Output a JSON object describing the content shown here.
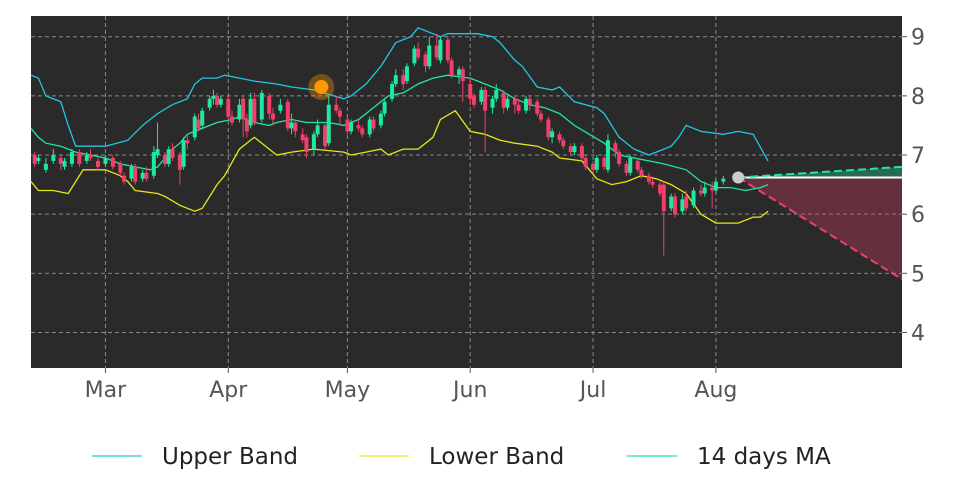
{
  "chart_data": {
    "type": "candlestick",
    "y_ticks": [
      4,
      5,
      6,
      7,
      8,
      9
    ],
    "ylim": [
      3.4,
      9.35
    ],
    "x_ticks": [
      "Mar",
      "Apr",
      "May",
      "Jun",
      "Jul",
      "Aug"
    ],
    "grid": true,
    "legend_placement": "bottom",
    "legend": [
      {
        "key": "upper",
        "label": "Upper Band",
        "color": "#22c7e3"
      },
      {
        "key": "lower",
        "label": "Lower Band",
        "color": "#e6e619"
      },
      {
        "key": "ma",
        "label": "14 days MA",
        "color": "#1de9a0"
      }
    ],
    "colors": {
      "background": "#2a2a2a",
      "up": "#1de9a0",
      "down": "#f0406a",
      "highlight": "#ff9800",
      "forecast_up": "#1de9a0",
      "forecast_down": "#f0406a",
      "last_point": "#cccccc"
    },
    "bands": {
      "upper": [
        [
          0,
          8.35
        ],
        [
          2,
          8.3
        ],
        [
          4,
          8.0
        ],
        [
          8,
          7.9
        ],
        [
          10,
          7.5
        ],
        [
          12,
          7.15
        ],
        [
          20,
          7.15
        ],
        [
          26,
          7.25
        ],
        [
          30,
          7.5
        ],
        [
          34,
          7.7
        ],
        [
          38,
          7.85
        ],
        [
          42,
          7.95
        ],
        [
          44,
          8.2
        ],
        [
          46,
          8.3
        ],
        [
          50,
          8.3
        ],
        [
          52,
          8.35
        ],
        [
          56,
          8.3
        ],
        [
          60,
          8.25
        ],
        [
          66,
          8.2
        ],
        [
          70,
          8.15
        ],
        [
          76,
          8.1
        ],
        [
          84,
          7.95
        ],
        [
          86,
          8.0
        ],
        [
          90,
          8.2
        ],
        [
          94,
          8.5
        ],
        [
          98,
          8.9
        ],
        [
          102,
          9.0
        ],
        [
          104,
          9.15
        ],
        [
          110,
          9.0
        ],
        [
          112,
          9.05
        ],
        [
          120,
          9.05
        ],
        [
          124,
          9.0
        ],
        [
          126,
          8.9
        ],
        [
          128,
          8.75
        ],
        [
          130,
          8.6
        ],
        [
          132,
          8.5
        ],
        [
          136,
          8.15
        ],
        [
          140,
          8.1
        ],
        [
          142,
          8.15
        ],
        [
          146,
          7.9
        ],
        [
          152,
          7.8
        ],
        [
          154,
          7.7
        ],
        [
          158,
          7.3
        ],
        [
          162,
          7.1
        ],
        [
          166,
          7.0
        ],
        [
          168,
          7.05
        ],
        [
          172,
          7.15
        ],
        [
          174,
          7.3
        ],
        [
          176,
          7.5
        ],
        [
          180,
          7.4
        ],
        [
          186,
          7.35
        ],
        [
          190,
          7.4
        ],
        [
          194,
          7.35
        ],
        [
          198,
          6.9
        ]
      ],
      "lower": [
        [
          0,
          6.55
        ],
        [
          2,
          6.4
        ],
        [
          6,
          6.4
        ],
        [
          10,
          6.35
        ],
        [
          12,
          6.55
        ],
        [
          14,
          6.75
        ],
        [
          20,
          6.75
        ],
        [
          24,
          6.65
        ],
        [
          26,
          6.55
        ],
        [
          28,
          6.4
        ],
        [
          34,
          6.35
        ],
        [
          36,
          6.3
        ],
        [
          40,
          6.15
        ],
        [
          44,
          6.05
        ],
        [
          46,
          6.1
        ],
        [
          50,
          6.5
        ],
        [
          52,
          6.65
        ],
        [
          56,
          7.1
        ],
        [
          60,
          7.3
        ],
        [
          62,
          7.2
        ],
        [
          66,
          7.0
        ],
        [
          70,
          7.05
        ],
        [
          76,
          7.1
        ],
        [
          84,
          7.05
        ],
        [
          86,
          7.0
        ],
        [
          90,
          7.05
        ],
        [
          94,
          7.1
        ],
        [
          96,
          7.0
        ],
        [
          100,
          7.1
        ],
        [
          104,
          7.1
        ],
        [
          108,
          7.3
        ],
        [
          110,
          7.6
        ],
        [
          114,
          7.75
        ],
        [
          118,
          7.4
        ],
        [
          122,
          7.35
        ],
        [
          126,
          7.25
        ],
        [
          130,
          7.2
        ],
        [
          136,
          7.15
        ],
        [
          140,
          7.05
        ],
        [
          142,
          6.95
        ],
        [
          148,
          6.9
        ],
        [
          152,
          6.6
        ],
        [
          156,
          6.5
        ],
        [
          160,
          6.55
        ],
        [
          164,
          6.65
        ],
        [
          168,
          6.6
        ],
        [
          172,
          6.5
        ],
        [
          176,
          6.35
        ],
        [
          180,
          6.0
        ],
        [
          184,
          5.85
        ],
        [
          190,
          5.85
        ],
        [
          194,
          5.95
        ],
        [
          196,
          5.95
        ],
        [
          198,
          6.05
        ]
      ],
      "ma": [
        [
          0,
          7.45
        ],
        [
          2,
          7.3
        ],
        [
          4,
          7.2
        ],
        [
          8,
          7.15
        ],
        [
          12,
          7.05
        ],
        [
          16,
          7.0
        ],
        [
          20,
          6.95
        ],
        [
          24,
          6.85
        ],
        [
          28,
          6.8
        ],
        [
          32,
          6.75
        ],
        [
          34,
          6.8
        ],
        [
          36,
          6.95
        ],
        [
          38,
          7.1
        ],
        [
          40,
          7.2
        ],
        [
          42,
          7.35
        ],
        [
          46,
          7.45
        ],
        [
          50,
          7.55
        ],
        [
          54,
          7.6
        ],
        [
          56,
          7.65
        ],
        [
          60,
          7.55
        ],
        [
          64,
          7.5
        ],
        [
          66,
          7.55
        ],
        [
          70,
          7.6
        ],
        [
          74,
          7.55
        ],
        [
          80,
          7.55
        ],
        [
          84,
          7.5
        ],
        [
          88,
          7.6
        ],
        [
          92,
          7.8
        ],
        [
          96,
          8.0
        ],
        [
          100,
          8.05
        ],
        [
          104,
          8.2
        ],
        [
          108,
          8.3
        ],
        [
          112,
          8.35
        ],
        [
          118,
          8.3
        ],
        [
          122,
          8.2
        ],
        [
          126,
          8.1
        ],
        [
          130,
          7.95
        ],
        [
          134,
          7.85
        ],
        [
          138,
          7.8
        ],
        [
          142,
          7.7
        ],
        [
          146,
          7.5
        ],
        [
          150,
          7.35
        ],
        [
          154,
          7.2
        ],
        [
          158,
          7.0
        ],
        [
          162,
          6.95
        ],
        [
          166,
          6.9
        ],
        [
          170,
          6.85
        ],
        [
          176,
          6.75
        ],
        [
          180,
          6.55
        ],
        [
          184,
          6.45
        ],
        [
          188,
          6.45
        ],
        [
          192,
          6.4
        ],
        [
          196,
          6.45
        ],
        [
          198,
          6.5
        ]
      ]
    },
    "candles": [
      [
        1,
        7.0,
        6.85,
        7.05,
        6.8
      ],
      [
        2,
        6.9,
        6.95,
        7.0,
        6.85
      ],
      [
        4,
        6.75,
        6.85,
        6.95,
        6.7
      ],
      [
        6,
        6.9,
        7.0,
        7.1,
        6.85
      ],
      [
        8,
        6.95,
        6.85,
        7.0,
        6.75
      ],
      [
        9,
        6.8,
        6.9,
        6.95,
        6.75
      ],
      [
        11,
        6.85,
        7.05,
        7.1,
        6.8
      ],
      [
        13,
        7.05,
        6.85,
        7.1,
        6.8
      ],
      [
        15,
        6.9,
        7.0,
        7.05,
        6.85
      ],
      [
        16,
        7.0,
        6.95,
        7.1,
        6.9
      ],
      [
        18,
        6.9,
        6.8,
        6.95,
        6.75
      ],
      [
        20,
        6.85,
        6.95,
        7.0,
        6.8
      ],
      [
        22,
        6.95,
        6.8,
        7.0,
        6.75
      ],
      [
        24,
        6.85,
        6.7,
        6.9,
        6.65
      ],
      [
        25,
        6.65,
        6.55,
        6.7,
        6.5
      ],
      [
        27,
        6.6,
        6.8,
        6.85,
        6.55
      ],
      [
        28,
        6.8,
        6.55,
        6.85,
        6.5
      ],
      [
        30,
        6.6,
        6.7,
        6.75,
        6.55
      ],
      [
        31,
        6.7,
        6.6,
        6.8,
        6.55
      ],
      [
        33,
        6.65,
        7.05,
        7.15,
        6.6
      ],
      [
        34,
        7.0,
        7.1,
        7.55,
        6.95
      ],
      [
        36,
        7.0,
        6.85,
        7.05,
        6.8
      ],
      [
        37,
        6.85,
        7.1,
        7.15,
        6.8
      ],
      [
        38,
        7.1,
        6.95,
        7.2,
        6.9
      ],
      [
        40,
        7.0,
        6.75,
        7.05,
        6.5
      ],
      [
        41,
        6.8,
        7.25,
        7.3,
        6.75
      ],
      [
        42,
        7.25,
        7.2,
        7.35,
        7.1
      ],
      [
        44,
        7.3,
        7.65,
        7.7,
        7.25
      ],
      [
        45,
        7.6,
        7.45,
        7.7,
        7.4
      ],
      [
        46,
        7.5,
        7.75,
        7.8,
        7.45
      ],
      [
        48,
        7.8,
        7.95,
        8.0,
        7.75
      ],
      [
        49,
        7.95,
        8.0,
        8.1,
        7.85
      ],
      [
        50,
        8.0,
        7.85,
        8.05,
        7.8
      ],
      [
        51,
        7.85,
        7.95,
        8.0,
        7.8
      ],
      [
        53,
        7.95,
        7.65,
        8.0,
        7.6
      ],
      [
        54,
        7.65,
        7.55,
        7.75,
        7.5
      ],
      [
        56,
        7.6,
        7.85,
        7.95,
        7.55
      ],
      [
        57,
        7.95,
        7.6,
        8.0,
        7.3
      ],
      [
        58,
        7.6,
        7.4,
        7.7,
        7.3
      ],
      [
        59,
        7.5,
        7.95,
        8.05,
        7.45
      ],
      [
        60,
        7.95,
        7.55,
        8.05,
        7.5
      ],
      [
        62,
        7.6,
        8.05,
        8.1,
        7.55
      ],
      [
        64,
        8.0,
        7.7,
        8.05,
        7.6
      ],
      [
        65,
        7.7,
        7.6,
        7.8,
        7.5
      ],
      [
        67,
        7.75,
        7.85,
        7.95,
        7.7
      ],
      [
        69,
        7.9,
        7.45,
        7.95,
        7.4
      ],
      [
        70,
        7.45,
        7.55,
        7.7,
        7.35
      ],
      [
        71,
        7.55,
        7.4,
        7.6,
        7.3
      ],
      [
        73,
        7.35,
        7.25,
        7.45,
        7.2
      ],
      [
        74,
        7.3,
        7.05,
        7.35,
        6.95
      ],
      [
        76,
        7.1,
        7.35,
        7.4,
        7.0
      ],
      [
        77,
        7.35,
        7.5,
        7.6,
        7.3
      ],
      [
        79,
        7.5,
        7.15,
        7.55,
        7.1
      ],
      [
        80,
        7.2,
        7.85,
        8.0,
        7.15
      ],
      [
        82,
        7.85,
        7.75,
        8.0,
        7.7
      ],
      [
        83,
        7.75,
        7.65,
        7.8,
        7.5
      ],
      [
        85,
        7.6,
        7.4,
        7.65,
        7.35
      ],
      [
        86,
        7.4,
        7.55,
        7.6,
        7.35
      ],
      [
        88,
        7.5,
        7.45,
        7.6,
        7.4
      ],
      [
        89,
        7.45,
        7.35,
        7.5,
        7.3
      ],
      [
        91,
        7.35,
        7.6,
        7.65,
        7.3
      ],
      [
        92,
        7.6,
        7.45,
        7.65,
        7.4
      ],
      [
        94,
        7.5,
        7.7,
        7.75,
        7.45
      ],
      [
        95,
        7.7,
        7.9,
        7.95,
        7.65
      ],
      [
        97,
        7.95,
        8.2,
        8.25,
        7.9
      ],
      [
        98,
        8.2,
        8.35,
        8.45,
        8.15
      ],
      [
        100,
        8.35,
        8.2,
        8.45,
        8.1
      ],
      [
        101,
        8.25,
        8.5,
        8.55,
        8.2
      ],
      [
        103,
        8.55,
        8.8,
        8.85,
        8.5
      ],
      [
        104,
        8.8,
        8.65,
        8.9,
        8.6
      ],
      [
        106,
        8.7,
        8.5,
        8.75,
        8.4
      ],
      [
        107,
        8.5,
        8.85,
        9.0,
        8.45
      ],
      [
        109,
        8.85,
        8.65,
        9.05,
        8.6
      ],
      [
        110,
        8.6,
        8.95,
        9.0,
        8.55
      ],
      [
        112,
        8.95,
        8.6,
        9.0,
        8.55
      ],
      [
        113,
        8.6,
        8.35,
        8.65,
        8.3
      ],
      [
        115,
        8.35,
        8.45,
        8.5,
        8.2
      ],
      [
        116,
        8.45,
        8.25,
        8.5,
        7.9
      ],
      [
        118,
        8.2,
        7.95,
        8.3,
        7.85
      ],
      [
        119,
        8.0,
        7.85,
        8.05,
        7.8
      ],
      [
        121,
        7.9,
        8.1,
        8.15,
        7.85
      ],
      [
        122,
        8.1,
        7.75,
        8.15,
        7.05
      ],
      [
        124,
        7.8,
        7.95,
        8.0,
        7.7
      ],
      [
        125,
        7.95,
        8.1,
        8.2,
        7.9
      ],
      [
        127,
        8.05,
        7.8,
        8.1,
        7.7
      ],
      [
        128,
        7.8,
        7.95,
        8.0,
        7.75
      ],
      [
        130,
        7.95,
        7.85,
        8.0,
        7.7
      ],
      [
        131,
        7.85,
        7.75,
        7.95,
        7.7
      ],
      [
        133,
        7.75,
        7.95,
        8.0,
        7.7
      ],
      [
        134,
        7.95,
        7.85,
        8.0,
        7.75
      ],
      [
        136,
        7.9,
        7.7,
        7.95,
        7.65
      ],
      [
        137,
        7.7,
        7.6,
        7.75,
        7.55
      ],
      [
        139,
        7.6,
        7.3,
        7.65,
        7.25
      ],
      [
        140,
        7.3,
        7.4,
        7.45,
        7.2
      ],
      [
        142,
        7.35,
        7.25,
        7.4,
        7.2
      ],
      [
        143,
        7.25,
        7.15,
        7.3,
        7.1
      ],
      [
        145,
        7.15,
        7.05,
        7.2,
        7.0
      ],
      [
        146,
        7.05,
        7.15,
        7.2,
        7.0
      ],
      [
        148,
        7.15,
        6.95,
        7.2,
        6.9
      ],
      [
        149,
        6.95,
        6.8,
        7.0,
        6.75
      ],
      [
        151,
        6.85,
        6.75,
        6.9,
        6.7
      ],
      [
        152,
        6.75,
        6.95,
        7.0,
        6.7
      ],
      [
        154,
        6.95,
        6.8,
        7.0,
        6.75
      ],
      [
        155,
        6.75,
        7.25,
        7.35,
        6.7
      ],
      [
        157,
        7.2,
        7.05,
        7.25,
        6.95
      ],
      [
        158,
        7.05,
        6.85,
        7.1,
        6.8
      ],
      [
        160,
        6.85,
        6.7,
        6.9,
        6.65
      ],
      [
        161,
        6.7,
        6.95,
        7.0,
        6.65
      ],
      [
        163,
        6.9,
        6.75,
        6.95,
        6.7
      ],
      [
        164,
        6.75,
        6.65,
        6.8,
        6.6
      ],
      [
        166,
        6.65,
        6.55,
        6.7,
        6.5
      ],
      [
        167,
        6.55,
        6.5,
        6.6,
        6.45
      ],
      [
        169,
        6.5,
        6.35,
        6.55,
        6.3
      ],
      [
        170,
        6.5,
        6.05,
        6.55,
        5.3
      ],
      [
        172,
        6.1,
        6.3,
        6.35,
        6.05
      ],
      [
        173,
        6.3,
        6.0,
        6.35,
        5.95
      ],
      [
        175,
        6.05,
        6.25,
        6.35,
        6.0
      ],
      [
        176,
        6.3,
        6.1,
        6.4,
        6.05
      ],
      [
        178,
        6.15,
        6.4,
        6.45,
        6.1
      ],
      [
        180,
        6.4,
        6.35,
        6.5,
        6.3
      ],
      [
        181,
        6.35,
        6.45,
        6.55,
        6.3
      ],
      [
        183,
        6.45,
        6.4,
        6.55,
        6.1
      ],
      [
        184,
        6.4,
        6.55,
        6.6,
        6.35
      ],
      [
        186,
        6.55,
        6.6,
        6.65,
        6.5
      ]
    ],
    "highlight_point": [
      78,
      8.15
    ],
    "last_point": [
      190,
      6.62
    ],
    "forecast": {
      "start": [
        190,
        6.62
      ],
      "end_x": 234,
      "upper_end": 6.8,
      "lower_end": 4.9
    },
    "x_range": [
      0,
      234
    ],
    "x_tick_pos": [
      20,
      53,
      85,
      118,
      151,
      184
    ]
  }
}
